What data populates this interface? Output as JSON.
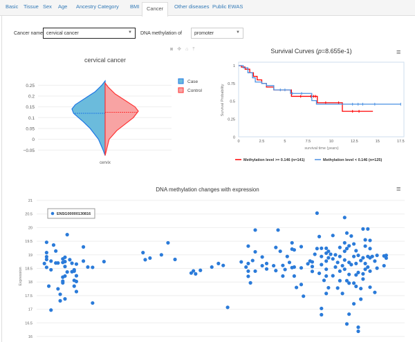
{
  "tabs": [
    {
      "label": "Basic"
    },
    {
      "label": "Tissue"
    },
    {
      "label": "Sex"
    },
    {
      "label": "Age"
    },
    {
      "label": "Ancestry Category"
    },
    {
      "label": "BMI"
    },
    {
      "label": "Cancer",
      "active": true
    },
    {
      "label": "Other diseases"
    },
    {
      "label": "Public EWAS"
    }
  ],
  "controls": {
    "cancer_label": "Cancer name:",
    "cancer_value": "cervical cancer",
    "meth_label": "DNA methylation of",
    "meth_value": "promoter"
  },
  "toolbar_icons": [
    "camera-icon",
    "pan-icon",
    "home-icon",
    "autoscale-icon"
  ],
  "violin": {
    "title": "cervical cancer",
    "category": "cervix",
    "yticks": [
      "0.25",
      "0.2",
      "0.15",
      "0.1",
      "0.05",
      "0",
      "−0.05"
    ],
    "ylim": [
      -0.08,
      0.28
    ],
    "series": [
      {
        "name": "Case",
        "color": "#1f77e4",
        "fill": "#6bbbdc",
        "median": 0.12,
        "profile": [
          [
            -0.075,
            0
          ],
          [
            -0.05,
            0.06
          ],
          [
            0,
            0.2
          ],
          [
            0.05,
            0.45
          ],
          [
            0.08,
            0.65
          ],
          [
            0.1,
            0.8
          ],
          [
            0.12,
            0.95
          ],
          [
            0.14,
            1
          ],
          [
            0.16,
            0.9
          ],
          [
            0.19,
            0.6
          ],
          [
            0.22,
            0.3
          ],
          [
            0.25,
            0.1
          ],
          [
            0.27,
            0
          ]
        ]
      },
      {
        "name": "Control",
        "color": "#f33",
        "fill": "#f8a3a3",
        "median": 0.125,
        "profile": [
          [
            -0.075,
            0
          ],
          [
            -0.05,
            0.04
          ],
          [
            0,
            0.12
          ],
          [
            0.04,
            0.35
          ],
          [
            0.07,
            0.6
          ],
          [
            0.1,
            0.85
          ],
          [
            0.13,
            1
          ],
          [
            0.15,
            0.9
          ],
          [
            0.18,
            0.6
          ],
          [
            0.21,
            0.3
          ],
          [
            0.24,
            0.1
          ],
          [
            0.26,
            0
          ]
        ]
      }
    ]
  },
  "survival": {
    "title_prefix": "Survival Curves (",
    "title_p": "p",
    "title_suffix": "=8.655e-1)",
    "xlabel": "survival time (years)",
    "ylabel": "Survival Probability",
    "xticks": [
      "0",
      "2.5",
      "5",
      "7.5",
      "10",
      "12.5",
      "15",
      "17.5"
    ],
    "yticks": [
      "1",
      "0.75",
      "0.5",
      "0.25",
      "0"
    ],
    "series": [
      {
        "name": "Methylation level >= 0.146 (n=141)",
        "color": "#f00",
        "steps": [
          [
            0,
            1
          ],
          [
            0.3,
            0.98
          ],
          [
            0.7,
            0.95
          ],
          [
            1.2,
            0.9
          ],
          [
            1.6,
            0.85
          ],
          [
            2,
            0.8
          ],
          [
            2.5,
            0.75
          ],
          [
            3,
            0.7
          ],
          [
            3.8,
            0.66
          ],
          [
            5.7,
            0.57
          ],
          [
            8.5,
            0.48
          ],
          [
            11.2,
            0.36
          ],
          [
            14.5,
            0.36
          ]
        ],
        "censor": [
          6.7,
          7.8,
          8.1,
          8.3,
          9.4,
          10.8,
          12.3,
          13
        ]
      },
      {
        "name": "Methylation level < 0.146 (n=125)",
        "color": "#4a90e2",
        "steps": [
          [
            0,
            1
          ],
          [
            0.5,
            0.97
          ],
          [
            1,
            0.9
          ],
          [
            1.5,
            0.83
          ],
          [
            1.8,
            0.77
          ],
          [
            2.5,
            0.75
          ],
          [
            3,
            0.72
          ],
          [
            3.8,
            0.66
          ],
          [
            5.6,
            0.61
          ],
          [
            7.9,
            0.51
          ],
          [
            8.4,
            0.46
          ],
          [
            17.5,
            0.46
          ]
        ],
        "censor": [
          4.5,
          5,
          5.8,
          6.8,
          12.3,
          12.9,
          13.4,
          14.7,
          17.5
        ]
      }
    ]
  },
  "scatter": {
    "title": "DNA methylation changes with expression",
    "ylabel": "Expression",
    "legend": "ENSG00000130816",
    "color": "#2b7bd9",
    "yticks": [
      "21",
      "20.5",
      "20",
      "19.5",
      "19",
      "18.5",
      "18",
      "17.5",
      "17",
      "16.5",
      "16"
    ],
    "ylim": [
      16,
      21
    ],
    "xlim": [
      0,
      100
    ],
    "points": [
      [
        2.1,
        18.68
      ],
      [
        2.7,
        19.46
      ],
      [
        2.7,
        19.08
      ],
      [
        2.7,
        18.93
      ],
      [
        2.7,
        18.83
      ],
      [
        2.7,
        18.54
      ],
      [
        3.3,
        17.85
      ],
      [
        3.9,
        18.77
      ],
      [
        3.9,
        18.45
      ],
      [
        3.9,
        16.97
      ],
      [
        4.6,
        19.36
      ],
      [
        5.2,
        19.14
      ],
      [
        5.2,
        18.7
      ],
      [
        5.8,
        18.7
      ],
      [
        5.8,
        17.75
      ],
      [
        6.4,
        17.55
      ],
      [
        6.4,
        17.31
      ],
      [
        7.1,
        18.85
      ],
      [
        7.1,
        18.72
      ],
      [
        7.1,
        18.18
      ],
      [
        7.1,
        18.03
      ],
      [
        7.1,
        17.97
      ],
      [
        7.7,
        18.91
      ],
      [
        7.7,
        18.75
      ],
      [
        7.7,
        18.57
      ],
      [
        7.7,
        18.22
      ],
      [
        7.7,
        17.38
      ],
      [
        8.3,
        19.74
      ],
      [
        8.3,
        18.37
      ],
      [
        9,
        18.82
      ],
      [
        9.6,
        18.69
      ],
      [
        9.6,
        18.38
      ],
      [
        10.2,
        18.45
      ],
      [
        10.2,
        18.4
      ],
      [
        10.2,
        18.06
      ],
      [
        10.2,
        17.85
      ],
      [
        10.8,
        18.66
      ],
      [
        10.8,
        18.23
      ],
      [
        10.8,
        18.02
      ],
      [
        10.8,
        17.65
      ],
      [
        12.7,
        19.29
      ],
      [
        12.7,
        18.77
      ],
      [
        13.9,
        18.55
      ],
      [
        15.2,
        18.54
      ],
      [
        15.2,
        17.23
      ],
      [
        18.3,
        18.75
      ],
      [
        28.9,
        19.08
      ],
      [
        29.5,
        18.82
      ],
      [
        30.8,
        18.88
      ],
      [
        33.9,
        19
      ],
      [
        35.7,
        19.44
      ],
      [
        37.6,
        18.83
      ],
      [
        42,
        18.33
      ],
      [
        42.6,
        18.41
      ],
      [
        43.2,
        18.3
      ],
      [
        44.5,
        18.43
      ],
      [
        47.6,
        18.55
      ],
      [
        49.4,
        18.68
      ],
      [
        50.7,
        18.61
      ],
      [
        51.9,
        17.07
      ],
      [
        55.6,
        18.74
      ],
      [
        56.9,
        18.55
      ],
      [
        57.5,
        19.32
      ],
      [
        57.5,
        18.68
      ],
      [
        57.5,
        18.4
      ],
      [
        57.5,
        18.21
      ],
      [
        58.1,
        17.97
      ],
      [
        58.7,
        18.79
      ],
      [
        59.4,
        19.91
      ],
      [
        59.4,
        19.11
      ],
      [
        59.4,
        18.4
      ],
      [
        61.3,
        18.92
      ],
      [
        61.3,
        18.6
      ],
      [
        62.5,
        18.68
      ],
      [
        62.5,
        18.48
      ],
      [
        64.4,
        18.6
      ],
      [
        65,
        19.27
      ],
      [
        65,
        18.42
      ],
      [
        65.6,
        19.91
      ],
      [
        66.2,
        19.13
      ],
      [
        66.9,
        18.61
      ],
      [
        66.9,
        18.22
      ],
      [
        67.5,
        18.46
      ],
      [
        68.1,
        18.94
      ],
      [
        68.7,
        18.72
      ],
      [
        69.4,
        19.44
      ],
      [
        69.4,
        19.21
      ],
      [
        69.4,
        18.53
      ],
      [
        70,
        19.18
      ],
      [
        70,
        18.55
      ],
      [
        70,
        18.22
      ],
      [
        70.6,
        17.8
      ],
      [
        71.9,
        19.3
      ],
      [
        71.9,
        18.52
      ],
      [
        71.9,
        17.91
      ],
      [
        72.5,
        17.48
      ],
      [
        73.7,
        18.67
      ],
      [
        74.3,
        18.77
      ],
      [
        74.9,
        18.74
      ],
      [
        74.9,
        18.57
      ],
      [
        74.9,
        18.39
      ],
      [
        75.6,
        19.02
      ],
      [
        76.2,
        20.53
      ],
      [
        76.2,
        19.23
      ],
      [
        76.8,
        19.67
      ],
      [
        76.8,
        18.32
      ],
      [
        77.4,
        19.24
      ],
      [
        77.4,
        18.94
      ],
      [
        77.4,
        18.64
      ],
      [
        77.4,
        17.03
      ],
      [
        77.4,
        16.8
      ],
      [
        78.1,
        18.06
      ],
      [
        78.7,
        19.24
      ],
      [
        78.7,
        19.06
      ],
      [
        78.7,
        18.77
      ],
      [
        78.7,
        18.47
      ],
      [
        78.7,
        18.22
      ],
      [
        78.7,
        17.58
      ],
      [
        79.3,
        19.13
      ],
      [
        79.3,
        18.89
      ],
      [
        79.3,
        17.79
      ],
      [
        79.9,
        19.02
      ],
      [
        80.5,
        19.71
      ],
      [
        80.5,
        18.85
      ],
      [
        80.5,
        18.23
      ],
      [
        81.2,
        19
      ],
      [
        81.2,
        18.55
      ],
      [
        81.8,
        18.72
      ],
      [
        81.8,
        17.78
      ],
      [
        82.4,
        19.27
      ],
      [
        82.4,
        18.94
      ],
      [
        82.4,
        18.4
      ],
      [
        82.4,
        18.05
      ],
      [
        83.1,
        17.58
      ],
      [
        83.1,
        18.6
      ],
      [
        83.7,
        20.37
      ],
      [
        83.7,
        19.44
      ],
      [
        83.7,
        19.13
      ],
      [
        83.7,
        18.81
      ],
      [
        83.7,
        18.47
      ],
      [
        84.3,
        19.8
      ],
      [
        84.3,
        19.23
      ],
      [
        84.3,
        16.46
      ],
      [
        84.3,
        18.05
      ],
      [
        84.9,
        19.33
      ],
      [
        84.9,
        18.72
      ],
      [
        84.9,
        18.28
      ],
      [
        84.9,
        17.96
      ],
      [
        84.9,
        16.82
      ],
      [
        85.5,
        19.69
      ],
      [
        85.5,
        18.64
      ],
      [
        86.2,
        19.4
      ],
      [
        86.2,
        18.94
      ],
      [
        86.2,
        17.96
      ],
      [
        86.2,
        17.2
      ],
      [
        86.8,
        19.15
      ],
      [
        86.8,
        18.68
      ],
      [
        86.8,
        18.26
      ],
      [
        86.8,
        17.84
      ],
      [
        87.4,
        18.98
      ],
      [
        87.4,
        18.35
      ],
      [
        87.4,
        16.34
      ],
      [
        87.4,
        16.19
      ],
      [
        88.1,
        18.79
      ],
      [
        88.1,
        17.76
      ],
      [
        88.1,
        17.37
      ],
      [
        88.7,
        19.95
      ],
      [
        88.7,
        18.89
      ],
      [
        88.7,
        18.3
      ],
      [
        88.7,
        18.11
      ],
      [
        89.3,
        19.55
      ],
      [
        89.3,
        19.32
      ],
      [
        89.3,
        18.68
      ],
      [
        89.3,
        18.47
      ],
      [
        90,
        19.95
      ],
      [
        90,
        18.94
      ],
      [
        90,
        18.55
      ],
      [
        90.6,
        19.53
      ],
      [
        90.6,
        19.23
      ],
      [
        90.6,
        18.89
      ],
      [
        90.6,
        18.4
      ],
      [
        90.6,
        17.81
      ],
      [
        91.2,
        18.94
      ],
      [
        91.9,
        18.77
      ],
      [
        91.9,
        17.62
      ],
      [
        92.5,
        18.98
      ],
      [
        92.5,
        18.51
      ],
      [
        94.4,
        18.96
      ],
      [
        94.4,
        18.6
      ],
      [
        95,
        18.98
      ],
      [
        95,
        18.88
      ]
    ]
  }
}
